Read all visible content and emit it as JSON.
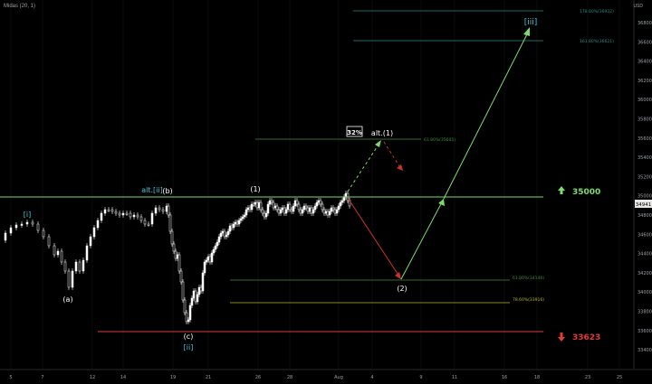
{
  "indicator": {
    "label": "Midas (20, 1)"
  },
  "price_scale": {
    "currency": "USD",
    "ticks": [
      "36800",
      "36600",
      "36400",
      "36200",
      "36000",
      "35800",
      "35600",
      "35400",
      "35200",
      "35000",
      "34800",
      "34600",
      "34400",
      "34200",
      "34000",
      "33800",
      "33600",
      "33400"
    ],
    "current_price": "34941"
  },
  "time_axis": {
    "ticks": [
      "5",
      "7",
      "12",
      "14",
      "19",
      "21",
      "26",
      "28",
      "Aug",
      "4",
      "9",
      "11",
      "16",
      "18",
      "23",
      "25"
    ]
  },
  "colors": {
    "background": "#000000",
    "candle": "#ffffff",
    "support_green": "#7bdc6a",
    "support_red": "#e03a3a",
    "fib_green": "#3f8f3a",
    "fib_yellow": "#b8b32a",
    "fib_teal": "#2a8a82",
    "projection_green": "#7bdc6a",
    "projection_red": "#d03030",
    "label_cyan": "#3cc7d6"
  },
  "levels": {
    "resistance": {
      "value": "35000"
    },
    "stop": {
      "value": "33623"
    },
    "fib_upper_1": {
      "label": "178.60%(36932)"
    },
    "fib_upper_2": {
      "label": "161.80%(36621)"
    },
    "fib_alt": {
      "label": "61.80%(35605)"
    },
    "fib_lower_1": {
      "label": "61.80%(34146)"
    },
    "fib_lower_2": {
      "label": "78.60%(33916)"
    }
  },
  "wave_labels": {
    "wave_i": "[i]",
    "alt_ii": "alt.[ii]",
    "wave_b": "(b)",
    "wave_1": "(1)",
    "wave_a": "(a)",
    "wave_c": "(c)",
    "wave_ii": "[ii]",
    "alt_1": "alt.(1)",
    "wave_2": "(2)",
    "wave_iii": "[iii]",
    "probability": "32%"
  }
}
